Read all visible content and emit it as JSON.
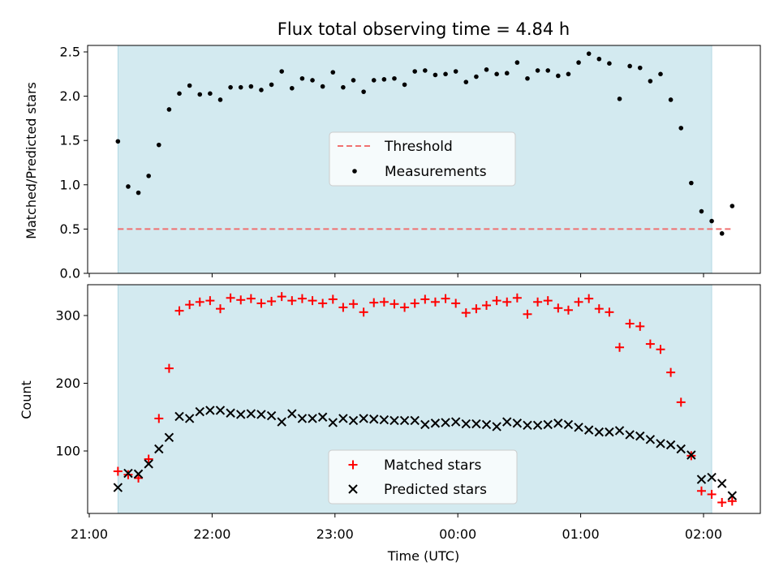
{
  "chart_data": [
    {
      "type": "scatter",
      "title": "Flux total observing time = 4.84 h",
      "xlabel": "",
      "ylabel": "Matched/Predicted stars",
      "ylim": [
        0,
        2.6
      ],
      "xlim": [
        "21:00",
        "02:30"
      ],
      "yticks": [
        "0.0",
        "0.5",
        "1.0",
        "1.5",
        "2.0",
        "2.5"
      ],
      "shaded_interval": [
        "21:14",
        "02:04"
      ],
      "shade_color": "#d3eaf0",
      "threshold": {
        "name": "Threshold",
        "value": 0.5,
        "from": "21:14",
        "to": "02:14",
        "color": "#f07070"
      },
      "legend": {
        "placement": "center",
        "entries": [
          "Threshold",
          "Measurements"
        ]
      },
      "series": [
        {
          "name": "Measurements",
          "color": "#000000",
          "x": [
            "21:14",
            "21:19",
            "21:24",
            "21:29",
            "21:34",
            "21:39",
            "21:44",
            "21:49",
            "21:54",
            "21:59",
            "22:04",
            "22:09",
            "22:14",
            "22:19",
            "22:24",
            "22:29",
            "22:34",
            "22:39",
            "22:44",
            "22:49",
            "22:54",
            "22:59",
            "23:04",
            "23:09",
            "23:14",
            "23:19",
            "23:24",
            "23:29",
            "23:34",
            "23:39",
            "23:44",
            "23:49",
            "23:54",
            "23:59",
            "00:04",
            "00:09",
            "00:14",
            "00:19",
            "00:24",
            "00:29",
            "00:34",
            "00:39",
            "00:44",
            "00:49",
            "00:54",
            "00:59",
            "01:04",
            "01:09",
            "01:14",
            "01:19",
            "01:24",
            "01:29",
            "01:34",
            "01:39",
            "01:44",
            "01:49",
            "01:54",
            "01:59",
            "02:04",
            "02:09",
            "02:14"
          ],
          "y": [
            1.49,
            0.98,
            0.91,
            1.1,
            1.45,
            1.85,
            2.03,
            2.12,
            2.02,
            2.03,
            1.96,
            2.1,
            2.1,
            2.11,
            2.07,
            2.13,
            2.28,
            2.09,
            2.2,
            2.18,
            2.11,
            2.27,
            2.1,
            2.18,
            2.05,
            2.18,
            2.19,
            2.2,
            2.13,
            2.28,
            2.29,
            2.24,
            2.25,
            2.28,
            2.16,
            2.22,
            2.3,
            2.25,
            2.26,
            2.38,
            2.2,
            2.29,
            2.29,
            2.23,
            2.25,
            2.38,
            2.48,
            2.42,
            2.37,
            1.97,
            2.34,
            2.32,
            2.17,
            2.25,
            1.96,
            1.64,
            1.02,
            0.7,
            0.59,
            0.45,
            0.76
          ]
        }
      ]
    },
    {
      "type": "scatter",
      "title": "",
      "xlabel": "Time (UTC)",
      "ylabel": "Count",
      "ylim": [
        10,
        345
      ],
      "xlim": [
        "21:00",
        "02:30"
      ],
      "yticks": [
        "100",
        "200",
        "300"
      ],
      "xticks": [
        "21:00",
        "22:00",
        "23:00",
        "00:00",
        "01:00",
        "02:00"
      ],
      "shaded_interval": [
        "21:14",
        "02:04"
      ],
      "shade_color": "#d3eaf0",
      "legend": {
        "placement": "bottom-center",
        "entries": [
          "Matched stars",
          "Predicted stars"
        ]
      },
      "series": [
        {
          "name": "Matched stars",
          "marker": "plus",
          "color": "#ff0000",
          "x": [
            "21:14",
            "21:19",
            "21:24",
            "21:29",
            "21:34",
            "21:39",
            "21:44",
            "21:49",
            "21:54",
            "21:59",
            "22:04",
            "22:09",
            "22:14",
            "22:19",
            "22:24",
            "22:29",
            "22:34",
            "22:39",
            "22:44",
            "22:49",
            "22:54",
            "22:59",
            "23:04",
            "23:09",
            "23:14",
            "23:19",
            "23:24",
            "23:29",
            "23:34",
            "23:39",
            "23:44",
            "23:49",
            "23:54",
            "23:59",
            "00:04",
            "00:09",
            "00:14",
            "00:19",
            "00:24",
            "00:29",
            "00:34",
            "00:39",
            "00:44",
            "00:49",
            "00:54",
            "00:59",
            "01:04",
            "01:09",
            "01:14",
            "01:19",
            "01:24",
            "01:29",
            "01:34",
            "01:39",
            "01:44",
            "01:49",
            "01:54",
            "01:59",
            "02:04",
            "02:09",
            "02:14"
          ],
          "y": [
            70,
            65,
            60,
            88,
            148,
            222,
            307,
            316,
            320,
            322,
            310,
            326,
            323,
            325,
            318,
            321,
            328,
            322,
            325,
            322,
            318,
            324,
            312,
            317,
            305,
            319,
            320,
            317,
            312,
            318,
            324,
            320,
            325,
            318,
            304,
            310,
            315,
            322,
            320,
            326,
            302,
            320,
            322,
            311,
            308,
            320,
            325,
            310,
            305,
            253,
            288,
            284,
            258,
            250,
            216,
            172,
            93,
            41,
            36,
            24,
            26
          ]
        },
        {
          "name": "Predicted stars",
          "marker": "x",
          "color": "#000000",
          "x": [
            "21:14",
            "21:19",
            "21:24",
            "21:29",
            "21:34",
            "21:39",
            "21:44",
            "21:49",
            "21:54",
            "21:59",
            "22:04",
            "22:09",
            "22:14",
            "22:19",
            "22:24",
            "22:29",
            "22:34",
            "22:39",
            "22:44",
            "22:49",
            "22:54",
            "22:59",
            "23:04",
            "23:09",
            "23:14",
            "23:19",
            "23:24",
            "23:29",
            "23:34",
            "23:39",
            "23:44",
            "23:49",
            "23:54",
            "23:59",
            "00:04",
            "00:09",
            "00:14",
            "00:19",
            "00:24",
            "00:29",
            "00:34",
            "00:39",
            "00:44",
            "00:49",
            "00:54",
            "00:59",
            "01:04",
            "01:09",
            "01:14",
            "01:19",
            "01:24",
            "01:29",
            "01:34",
            "01:39",
            "01:44",
            "01:49",
            "01:54",
            "01:59",
            "02:04",
            "02:09",
            "02:14"
          ],
          "y": [
            46,
            67,
            66,
            81,
            103,
            120,
            151,
            148,
            158,
            160,
            160,
            156,
            154,
            155,
            154,
            152,
            143,
            155,
            148,
            148,
            150,
            142,
            148,
            145,
            148,
            147,
            146,
            145,
            145,
            145,
            139,
            141,
            142,
            143,
            140,
            140,
            139,
            136,
            143,
            141,
            138,
            138,
            139,
            141,
            139,
            135,
            131,
            128,
            128,
            130,
            124,
            122,
            117,
            111,
            109,
            103,
            94,
            58,
            61,
            52,
            34
          ]
        }
      ]
    }
  ]
}
